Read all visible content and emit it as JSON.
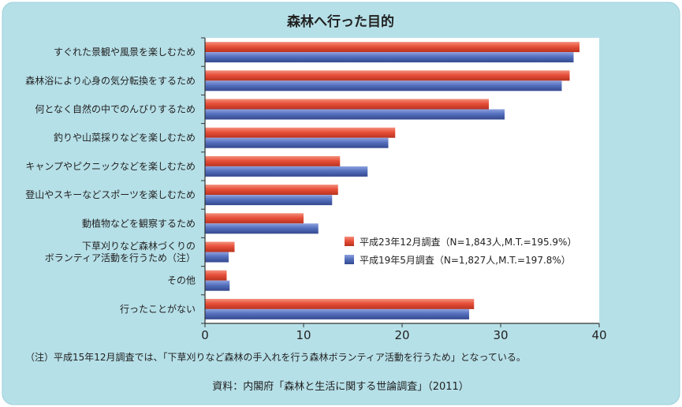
{
  "colors": {
    "panel": "#b6e0e8",
    "plot_bg": "#ffffff",
    "series_2011": "#e8503a",
    "series_2007": "#5570bd",
    "text": "#222222"
  },
  "chart_data": {
    "type": "bar",
    "orientation": "horizontal",
    "title": "森林へ行った目的",
    "categories": [
      "すぐれた景観や風景を楽しむため",
      "森林浴により心身の気分転換をするため",
      "何となく自然の中でのんびりするため",
      "釣りや山菜採りなどを楽しむため",
      "キャンプやピクニックなどを楽しむため",
      "登山やスキーなどスポーツを楽しむため",
      "動植物などを観察するため",
      "下草刈りなど森林づくりの\nボランティア活動を行うため（注）",
      "その他",
      "行ったことがない"
    ],
    "series": [
      {
        "name": "平成23年12月調査（N=1,843人,M.T.=195.9%）",
        "values": [
          38.0,
          37.0,
          28.8,
          19.3,
          13.7,
          13.5,
          10.0,
          3.0,
          2.2,
          27.3
        ]
      },
      {
        "name": "平成19年5月調査（N=1,827人,M.T.=197.8%）",
        "values": [
          37.4,
          36.2,
          30.4,
          18.6,
          16.5,
          12.9,
          11.5,
          2.4,
          2.5,
          26.8
        ]
      }
    ],
    "xlim": [
      0,
      40
    ],
    "xticks": [
      "0",
      "10",
      "20",
      "30",
      "40"
    ],
    "legend_position": "lower-right",
    "grid": false
  },
  "footnote": "（注）平成15年12月調査では、「下草刈りなど森林の手入れを行う森林ボランティア活動を行うため」となっている。",
  "source": "資料：内閣府「森林と生活に関する世論調査」（2011）"
}
